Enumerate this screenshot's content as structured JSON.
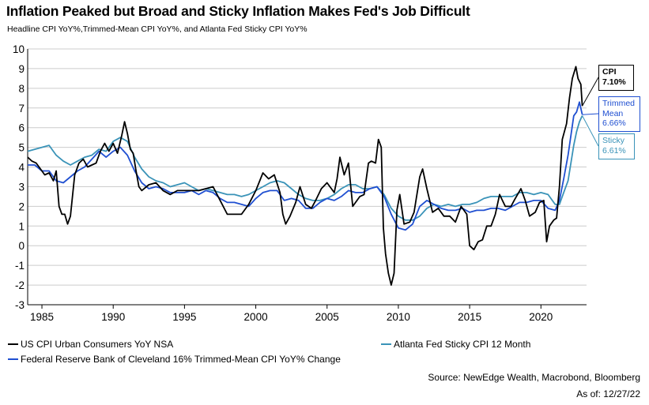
{
  "title": "Inflation Peaked but Broad and Sticky Inflation Makes Fed's Job Difficult",
  "subtitle": "Headline CPI YoY%,Trimmed-Mean CPI YoY%, and Atlanta Fed Sticky CPI YoY%",
  "source": "Source: NewEdge Wealth, Macrobond, Bloomberg",
  "as_of": "As of: 12/27/22",
  "callouts": {
    "cpi": {
      "name": "CPI",
      "value": "7.10%"
    },
    "trimmed": {
      "name1": "Trimmed",
      "name2": "Mean",
      "value": "6.66%"
    },
    "sticky": {
      "name": "Sticky",
      "value": "6.61%"
    }
  },
  "legend": {
    "cpi": "US CPI Urban Consumers YoY NSA",
    "sticky": "Atlanta Fed Sticky CPI 12 Month",
    "trimmed": "Federal Reserve Bank of Cleveland 16% Trimmed-Mean CPI YoY% Change"
  },
  "colors": {
    "cpi": "#000000",
    "trimmed": "#1f4fd1",
    "sticky": "#3a93b8",
    "grid": "#cccccc"
  },
  "chart_data": {
    "type": "line",
    "title": "Inflation Peaked but Broad and Sticky Inflation Makes Fed's Job Difficult",
    "xlabel": "",
    "ylabel": "",
    "xlim": [
      1984.0,
      2023.2
    ],
    "ylim": [
      -3,
      10
    ],
    "y_ticks": [
      -3,
      -2,
      -1,
      0,
      1,
      2,
      3,
      4,
      5,
      6,
      7,
      8,
      9,
      10
    ],
    "y_tick_labels": [
      "-3",
      "-2",
      "-1",
      "0",
      "1",
      "2",
      "3",
      "4",
      "5",
      "6",
      "7",
      "8",
      "9",
      "10"
    ],
    "x_ticks": [
      1985,
      1990,
      1995,
      2000,
      2005,
      2010,
      2015,
      2020
    ],
    "x_tick_labels": [
      "1985",
      "1990",
      "1995",
      "2000",
      "2005",
      "2010",
      "2015",
      "2020"
    ],
    "grid": true,
    "series": [
      {
        "name": "US CPI Urban Consumers YoY NSA",
        "key": "cpi",
        "x": [
          1984.0,
          1984.3,
          1984.6,
          1984.9,
          1985.2,
          1985.5,
          1985.8,
          1986.0,
          1986.2,
          1986.4,
          1986.6,
          1986.8,
          1987.0,
          1987.3,
          1987.6,
          1987.9,
          1988.2,
          1988.5,
          1988.8,
          1989.1,
          1989.4,
          1989.7,
          1990.0,
          1990.3,
          1990.6,
          1990.8,
          1991.0,
          1991.2,
          1991.4,
          1991.6,
          1991.8,
          1992.0,
          1992.5,
          1993.0,
          1993.5,
          1994.0,
          1994.5,
          1995.0,
          1995.5,
          1996.0,
          1996.5,
          1997.0,
          1997.5,
          1998.0,
          1998.5,
          1999.0,
          1999.5,
          2000.0,
          2000.5,
          2000.9,
          2001.3,
          2001.7,
          2001.9,
          2002.1,
          2002.4,
          2002.8,
          2003.1,
          2003.5,
          2003.9,
          2004.2,
          2004.6,
          2005.0,
          2005.5,
          2005.7,
          2005.9,
          2006.2,
          2006.5,
          2006.8,
          2007.0,
          2007.3,
          2007.6,
          2007.9,
          2008.1,
          2008.4,
          2008.6,
          2008.8,
          2008.95,
          2009.1,
          2009.3,
          2009.5,
          2009.7,
          2009.9,
          2010.1,
          2010.4,
          2010.8,
          2011.1,
          2011.5,
          2011.7,
          2012.0,
          2012.4,
          2012.8,
          2013.2,
          2013.6,
          2014.0,
          2014.4,
          2014.8,
          2015.0,
          2015.3,
          2015.6,
          2015.9,
          2016.2,
          2016.5,
          2016.8,
          2017.1,
          2017.5,
          2017.9,
          2018.2,
          2018.6,
          2018.9,
          2019.2,
          2019.6,
          2019.9,
          2020.2,
          2020.4,
          2020.6,
          2020.9,
          2021.1,
          2021.3,
          2021.5,
          2021.8,
          2022.0,
          2022.2,
          2022.45,
          2022.6,
          2022.8,
          2022.9
        ],
        "values": [
          4.5,
          4.3,
          4.2,
          3.9,
          3.6,
          3.7,
          3.3,
          3.8,
          2.0,
          1.6,
          1.6,
          1.1,
          1.5,
          3.6,
          4.2,
          4.4,
          4.0,
          4.1,
          4.2,
          4.8,
          5.2,
          4.8,
          5.2,
          4.7,
          5.6,
          6.3,
          5.7,
          4.9,
          4.7,
          3.8,
          3.0,
          2.8,
          3.1,
          3.2,
          2.8,
          2.6,
          2.8,
          2.8,
          2.8,
          2.8,
          2.9,
          3.0,
          2.3,
          1.6,
          1.6,
          1.6,
          2.1,
          2.8,
          3.7,
          3.4,
          3.6,
          2.7,
          1.6,
          1.1,
          1.5,
          2.2,
          3.0,
          2.1,
          1.9,
          2.3,
          2.9,
          3.2,
          2.7,
          3.4,
          4.5,
          3.6,
          4.2,
          2.0,
          2.2,
          2.5,
          2.6,
          4.2,
          4.3,
          4.2,
          5.4,
          5.0,
          0.9,
          -0.4,
          -1.4,
          -2.0,
          -1.4,
          1.8,
          2.6,
          1.1,
          1.2,
          1.7,
          3.5,
          3.9,
          2.9,
          1.7,
          1.9,
          1.5,
          1.5,
          1.2,
          2.0,
          1.6,
          0.0,
          -0.2,
          0.2,
          0.3,
          1.0,
          1.0,
          1.6,
          2.6,
          2.0,
          2.0,
          2.4,
          2.9,
          2.3,
          1.5,
          1.7,
          2.2,
          2.3,
          0.2,
          1.0,
          1.3,
          1.4,
          3.0,
          5.4,
          6.2,
          7.5,
          8.5,
          9.1,
          8.5,
          8.2,
          7.1
        ]
      },
      {
        "name": "Federal Reserve Bank of Cleveland 16% Trimmed-Mean CPI YoY% Change",
        "key": "trimmed",
        "x": [
          1984.0,
          1984.5,
          1985.0,
          1985.5,
          1986.0,
          1986.5,
          1987.0,
          1987.5,
          1988.0,
          1988.5,
          1989.0,
          1989.5,
          1990.0,
          1990.5,
          1991.0,
          1991.5,
          1992.0,
          1992.5,
          1993.0,
          1993.5,
          1994.0,
          1994.5,
          1995.0,
          1995.5,
          1996.0,
          1996.5,
          1997.0,
          1997.5,
          1998.0,
          1998.5,
          1999.0,
          1999.5,
          2000.0,
          2000.5,
          2001.0,
          2001.5,
          2002.0,
          2002.5,
          2003.0,
          2003.5,
          2004.0,
          2004.5,
          2005.0,
          2005.5,
          2006.0,
          2006.5,
          2007.0,
          2007.5,
          2008.0,
          2008.5,
          2009.0,
          2009.5,
          2010.0,
          2010.5,
          2011.0,
          2011.5,
          2012.0,
          2012.5,
          2013.0,
          2013.5,
          2014.0,
          2014.5,
          2015.0,
          2015.5,
          2016.0,
          2016.5,
          2017.0,
          2017.5,
          2018.0,
          2018.5,
          2019.0,
          2019.5,
          2020.0,
          2020.5,
          2021.0,
          2021.3,
          2021.6,
          2021.9,
          2022.1,
          2022.3,
          2022.5,
          2022.7,
          2022.9
        ],
        "values": [
          4.1,
          4.1,
          3.8,
          3.8,
          3.3,
          3.2,
          3.5,
          3.8,
          4.0,
          4.4,
          4.8,
          4.5,
          4.8,
          5.0,
          4.6,
          3.8,
          3.2,
          2.9,
          3.0,
          2.9,
          2.7,
          2.7,
          2.7,
          2.8,
          2.6,
          2.8,
          2.7,
          2.4,
          2.2,
          2.2,
          2.1,
          2.0,
          2.4,
          2.7,
          2.8,
          2.8,
          2.3,
          2.4,
          2.3,
          1.9,
          1.9,
          2.2,
          2.4,
          2.3,
          2.5,
          2.8,
          2.7,
          2.7,
          2.9,
          3.0,
          2.5,
          1.6,
          0.9,
          0.8,
          1.1,
          2.0,
          2.3,
          2.1,
          1.9,
          1.8,
          1.8,
          1.9,
          1.7,
          1.8,
          1.8,
          1.9,
          1.9,
          1.8,
          2.0,
          2.2,
          2.2,
          2.3,
          2.3,
          1.9,
          1.8,
          2.3,
          3.4,
          4.6,
          5.6,
          6.6,
          6.8,
          7.3,
          6.66
        ]
      },
      {
        "name": "Atlanta Fed Sticky CPI 12 Month",
        "key": "sticky",
        "x": [
          1984.0,
          1984.5,
          1985.0,
          1985.5,
          1986.0,
          1986.5,
          1987.0,
          1987.5,
          1988.0,
          1988.5,
          1989.0,
          1989.5,
          1990.0,
          1990.5,
          1991.0,
          1991.5,
          1992.0,
          1992.5,
          1993.0,
          1993.5,
          1994.0,
          1994.5,
          1995.0,
          1995.5,
          1996.0,
          1996.5,
          1997.0,
          1997.5,
          1998.0,
          1998.5,
          1999.0,
          1999.5,
          2000.0,
          2000.5,
          2001.0,
          2001.5,
          2002.0,
          2002.5,
          2003.0,
          2003.5,
          2004.0,
          2004.5,
          2005.0,
          2005.5,
          2006.0,
          2006.5,
          2007.0,
          2007.5,
          2008.0,
          2008.5,
          2009.0,
          2009.5,
          2010.0,
          2010.5,
          2011.0,
          2011.5,
          2012.0,
          2012.5,
          2013.0,
          2013.5,
          2014.0,
          2014.5,
          2015.0,
          2015.5,
          2016.0,
          2016.5,
          2017.0,
          2017.5,
          2018.0,
          2018.5,
          2019.0,
          2019.5,
          2020.0,
          2020.5,
          2021.0,
          2021.3,
          2021.6,
          2021.9,
          2022.1,
          2022.3,
          2022.5,
          2022.7,
          2022.9
        ],
        "values": [
          4.8,
          4.9,
          5.0,
          5.1,
          4.6,
          4.3,
          4.1,
          4.3,
          4.5,
          4.6,
          4.9,
          4.8,
          5.3,
          5.5,
          5.3,
          4.5,
          3.9,
          3.5,
          3.3,
          3.2,
          3.0,
          3.1,
          3.2,
          3.0,
          2.8,
          2.9,
          2.8,
          2.7,
          2.6,
          2.6,
          2.5,
          2.6,
          2.8,
          3.0,
          3.2,
          3.3,
          3.2,
          2.9,
          2.6,
          2.4,
          2.3,
          2.3,
          2.4,
          2.6,
          2.9,
          3.1,
          3.1,
          2.9,
          2.9,
          3.0,
          2.6,
          1.9,
          1.5,
          1.3,
          1.3,
          1.5,
          1.9,
          2.1,
          2.0,
          2.1,
          2.0,
          2.1,
          2.1,
          2.2,
          2.4,
          2.5,
          2.5,
          2.5,
          2.5,
          2.7,
          2.7,
          2.6,
          2.7,
          2.6,
          2.1,
          2.1,
          2.7,
          3.3,
          4.2,
          5.1,
          5.8,
          6.3,
          6.61
        ]
      }
    ]
  }
}
